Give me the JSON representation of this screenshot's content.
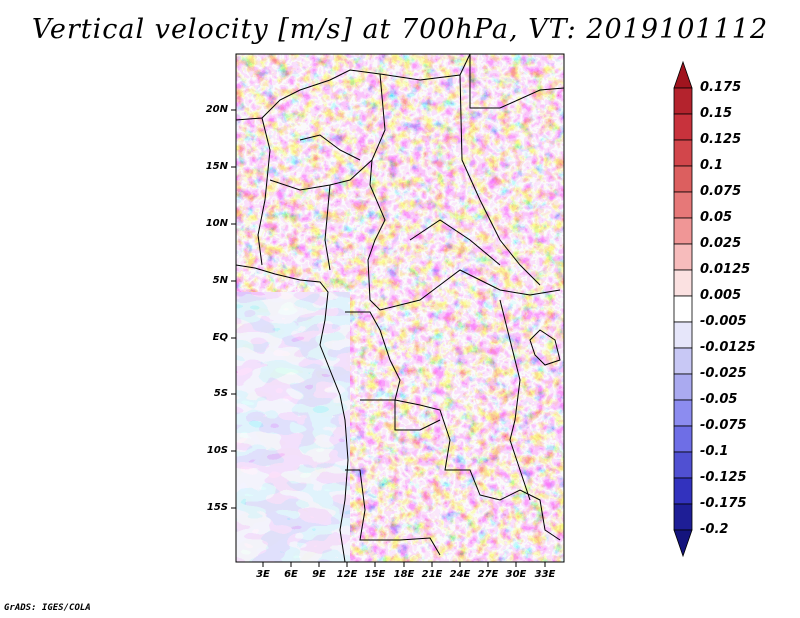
{
  "title": "Vertical velocity [m/s] at 700hPa, VT: 2019101112",
  "credit": "GrADS: IGES/COLA",
  "map": {
    "lat_labels": [
      "20N",
      "15N",
      "10N",
      "5N",
      "EQ",
      "5S",
      "10S",
      "15S"
    ],
    "lon_labels": [
      "3E",
      "6E",
      "9E",
      "12E",
      "15E",
      "18E",
      "21E",
      "24E",
      "27E",
      "30E",
      "33E"
    ]
  },
  "colorbar": {
    "labels": [
      "0.175",
      "0.15",
      "0.125",
      "0.1",
      "0.075",
      "0.05",
      "0.025",
      "0.0125",
      "0.005",
      "-0.005",
      "-0.0125",
      "-0.025",
      "-0.05",
      "-0.075",
      "-0.1",
      "-0.125",
      "-0.175",
      "-0.2"
    ],
    "colors": [
      "#a0141e",
      "#b4232d",
      "#c8323c",
      "#d2464b",
      "#dc5f5f",
      "#e67878",
      "#f09696",
      "#f7bcbc",
      "#fbe1e1",
      "#ffffff",
      "#e6e6fa",
      "#c8c8f5",
      "#aaaaf0",
      "#8c8cf0",
      "#6e6ee6",
      "#5050d2",
      "#3232be",
      "#1e1e96",
      "#14147d"
    ]
  }
}
